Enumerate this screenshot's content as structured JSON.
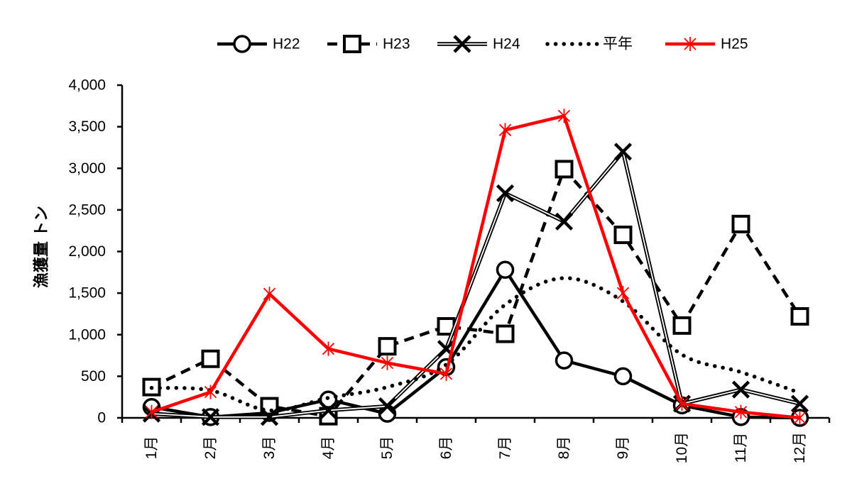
{
  "chart_data": {
    "type": "line",
    "categories": [
      "1月",
      "2月",
      "3月",
      "4月",
      "5月",
      "6月",
      "7月",
      "8月",
      "9月",
      "10月",
      "11月",
      "12月"
    ],
    "series": [
      {
        "name": "H22",
        "values": [
          130,
          10,
          60,
          220,
          50,
          610,
          1780,
          690,
          500,
          150,
          10,
          0
        ],
        "color": "#000000",
        "line_style": "solid",
        "marker": "circle"
      },
      {
        "name": "H23",
        "values": [
          370,
          710,
          140,
          20,
          860,
          1100,
          1010,
          2990,
          2200,
          1110,
          2330,
          1220
        ],
        "color": "#000000",
        "line_style": "dashed",
        "marker": "square"
      },
      {
        "name": "H24",
        "values": [
          50,
          10,
          10,
          90,
          140,
          830,
          2700,
          2360,
          3200,
          170,
          340,
          170
        ],
        "color": "#000000",
        "line_style": "double",
        "marker": "x"
      },
      {
        "name": "平年",
        "values": [
          360,
          330,
          90,
          240,
          370,
          640,
          1360,
          1680,
          1400,
          760,
          550,
          300
        ],
        "color": "#000000",
        "line_style": "dotted",
        "marker": "none",
        "smooth": true
      },
      {
        "name": "H25",
        "values": [
          70,
          310,
          1490,
          830,
          660,
          530,
          3460,
          3630,
          1500,
          170,
          70,
          0
        ],
        "color": "#ff0000",
        "line_style": "solid",
        "marker": "asterisk"
      }
    ],
    "ylabel": "漁獲量 トン",
    "ylim": [
      0,
      4000
    ],
    "yticks": [
      0,
      500,
      1000,
      1500,
      2000,
      2500,
      3000,
      3500,
      4000
    ],
    "ytick_labels": [
      "0",
      "500",
      "1,000",
      "1,500",
      "2,000",
      "2,500",
      "3,000",
      "3,500",
      "4,000"
    ],
    "grid": false,
    "legend": "top"
  }
}
